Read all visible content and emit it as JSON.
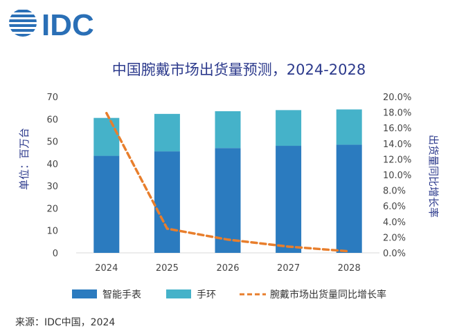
{
  "logo": {
    "text": "IDC",
    "color": "#2a6fb6"
  },
  "source": "来源：IDC中国，2024",
  "chart_data": {
    "type": "bar",
    "stacked": true,
    "title": "中国腕戴市场出货量预测，2024-2028",
    "ylabel": "单位：百万台",
    "y2label": "出货量同比增长率",
    "categories": [
      "2024",
      "2025",
      "2026",
      "2027",
      "2028"
    ],
    "ylim": [
      0,
      70
    ],
    "yticks": [
      "0",
      "10",
      "20",
      "30",
      "40",
      "50",
      "60",
      "70"
    ],
    "y2lim": [
      0,
      20
    ],
    "y2ticks": [
      "0.0%",
      "2.0%",
      "4.0%",
      "6.0%",
      "8.0%",
      "10.0%",
      "12.0%",
      "14.0%",
      "16.0%",
      "18.0%",
      "20.0%"
    ],
    "series": [
      {
        "name": "智能手表",
        "type": "bar",
        "color": "#2b7bbf",
        "values": [
          43.5,
          45.5,
          47,
          48,
          48.5
        ]
      },
      {
        "name": "手环",
        "type": "bar",
        "color": "#45b2c9",
        "values": [
          17,
          16.8,
          16.5,
          16,
          15.8
        ]
      },
      {
        "name": "腕戴市场出货量同比增长率",
        "type": "line",
        "axis": "right",
        "style": "dashed",
        "color": "#e87e2c",
        "values": [
          17.9,
          3.1,
          1.7,
          0.8,
          0.2
        ]
      }
    ],
    "legend": "bottom",
    "grid": false
  }
}
